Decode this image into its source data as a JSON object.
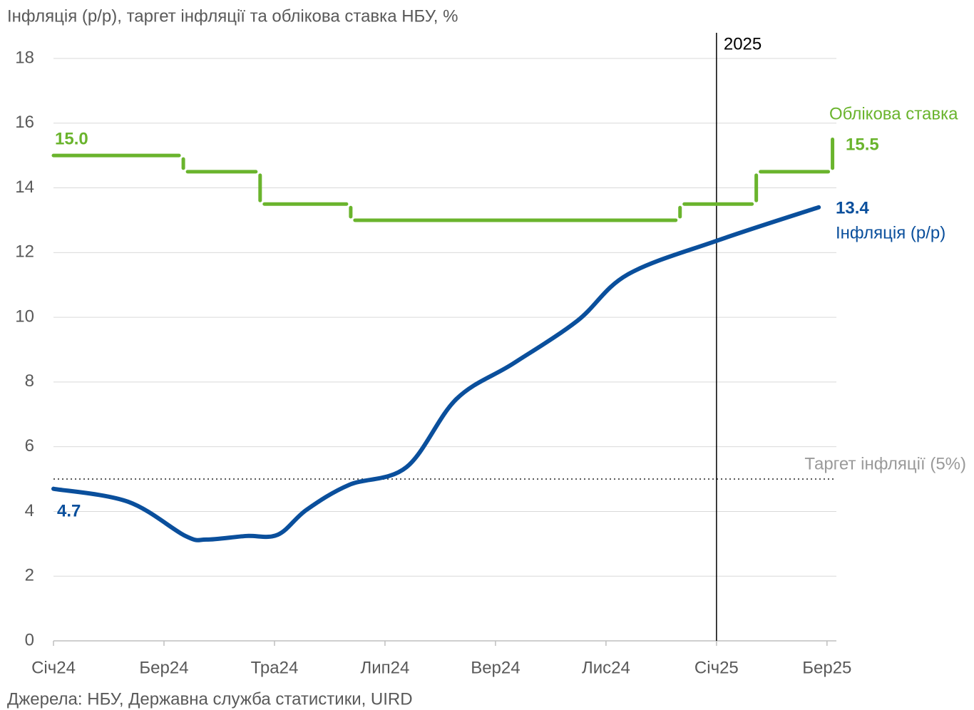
{
  "chart_data": {
    "type": "line",
    "title": "Інфляція (р/р), таргет інфляції та облікова ставка НБУ, %",
    "source": "Джерела: НБУ, Державна служба статистики, UIRD",
    "xlim": [
      0,
      14.17
    ],
    "xticks": [
      {
        "value": 0,
        "label": "Січ24"
      },
      {
        "value": 2,
        "label": "Бер24"
      },
      {
        "value": 4,
        "label": "Тра24"
      },
      {
        "value": 6,
        "label": "Лип24"
      },
      {
        "value": 8,
        "label": "Вер24"
      },
      {
        "value": 10,
        "label": "Лис24"
      },
      {
        "value": 12,
        "label": "Січ25"
      },
      {
        "value": 14,
        "label": "Бер25"
      }
    ],
    "ylim": [
      0,
      18
    ],
    "yticks": [
      0,
      2,
      4,
      6,
      8,
      10,
      12,
      14,
      16,
      18
    ],
    "grid": true,
    "series": [
      {
        "name": "Облікова ставка",
        "color": "#6ab42d",
        "style": "step",
        "x": [
          0,
          2.35,
          3.74,
          5.38,
          11.34,
          12.72,
          14.1
        ],
        "values": [
          15,
          14.5,
          13.5,
          13,
          13.5,
          14.5,
          15.5
        ],
        "value_labels": [
          "15.0",
          null,
          null,
          null,
          null,
          null,
          "15.5"
        ]
      },
      {
        "name": "Інфляція (р/р)",
        "color": "#0a4f9c",
        "style": "smooth",
        "x": [
          0,
          1.35,
          2.39,
          2.77,
          3.48,
          4.06,
          4.58,
          5.35,
          6.39,
          7.29,
          8.32,
          9.48,
          10.39,
          12.03,
          13.85
        ],
        "values": [
          4.7,
          4.3,
          3.24,
          3.13,
          3.24,
          3.28,
          4.05,
          4.82,
          5.37,
          7.47,
          8.57,
          9.89,
          11.32,
          12.38,
          13.4
        ],
        "value_labels": [
          "4.7",
          null,
          null,
          null,
          null,
          null,
          null,
          null,
          null,
          null,
          null,
          null,
          null,
          null,
          "13.4"
        ]
      }
    ],
    "reference_line": {
      "label": "Таргет інфляції (5%)",
      "value": 5
    },
    "vertical_line": {
      "label": "2025",
      "x": 12
    }
  }
}
